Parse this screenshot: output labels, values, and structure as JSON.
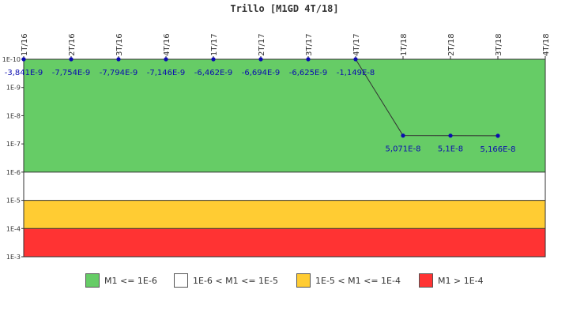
{
  "chart_data": {
    "type": "line",
    "title": "Trillo [M1GD 4T/18]",
    "categories": [
      "1T/16",
      "2T/16",
      "3T/16",
      "4T/16",
      "1T/17",
      "2T/17",
      "3T/17",
      "4T/17",
      "1T/18",
      "2T/18",
      "3T/18",
      "4T/18"
    ],
    "y_scale": "log-reversed",
    "y_ticks": [
      "1E-10",
      "1E-9",
      "1E-8",
      "1E-7",
      "1E-6",
      "1E-5",
      "1E-4",
      "1E-3"
    ],
    "ylim": [
      "1E-10",
      "1E-3"
    ],
    "series": [
      {
        "color": "#0b0bb0",
        "values": [
          -3.841e-09,
          -7.754e-09,
          -7.794e-09,
          -7.146e-09,
          -6.462e-09,
          -6.694e-09,
          -6.625e-09,
          -1.149e-08,
          5.071e-08,
          5.1e-08,
          5.166e-08,
          null
        ],
        "labels": [
          "-3,841E-9",
          "-7,754E-9",
          "-7,794E-9",
          "-7,146E-9",
          "-6,462E-9",
          "-6,694E-9",
          "-6,625E-9",
          "-1,149E-8",
          "5,071E-8",
          "5,1E-8",
          "5,166E-8",
          null
        ]
      }
    ],
    "bands": [
      {
        "from": "1E-10",
        "to": "1E-6",
        "color": "#66cc66",
        "label": "M1 <= 1E-6"
      },
      {
        "from": "1E-6",
        "to": "1E-5",
        "color": "#ffffff",
        "label": "1E-6 < M1 <= 1E-5"
      },
      {
        "from": "1E-5",
        "to": "1E-4",
        "color": "#ffcc33",
        "label": "1E-5 < M1 <= 1E-4"
      },
      {
        "from": "1E-4",
        "to": "1E-3",
        "color": "#ff3333",
        "label": "M1 > 1E-4"
      }
    ],
    "legend_position": "bottom"
  }
}
